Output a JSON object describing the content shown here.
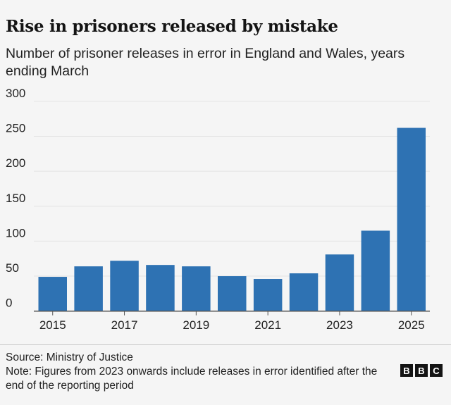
{
  "title": "Rise in prisoners released by mistake",
  "subtitle": "Number of prisoner releases in error in England and Wales, years ending March",
  "source": "Source: Ministry of Justice",
  "note": "Note: Figures from 2023 onwards include releases in error identified after the end of the reporting period",
  "logo": "BBC",
  "chart_data": {
    "type": "bar",
    "categories": [
      "2015",
      "2016",
      "2017",
      "2018",
      "2019",
      "2020",
      "2021",
      "2022",
      "2023",
      "2024",
      "2025"
    ],
    "values": [
      49,
      64,
      72,
      66,
      64,
      50,
      46,
      54,
      81,
      115,
      262
    ],
    "x_tick_labels": [
      "2015",
      "2017",
      "2019",
      "2021",
      "2023",
      "2025"
    ],
    "y_ticks": [
      0,
      50,
      100,
      150,
      200,
      250,
      300
    ],
    "ylim": [
      0,
      300
    ],
    "grid": true,
    "bar_color": "#2e72b3"
  }
}
